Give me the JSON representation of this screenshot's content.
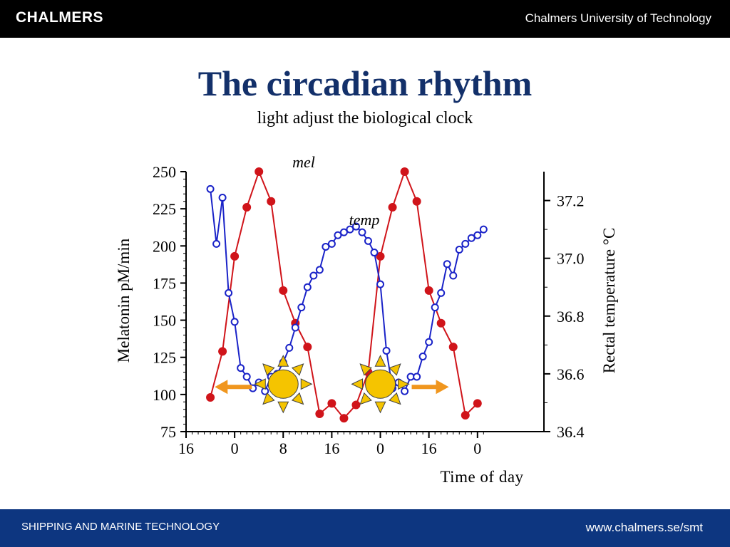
{
  "header": {
    "logo_text": "CHALMERS",
    "university": "Chalmers University of Technology"
  },
  "title": "The circadian rhythm",
  "subtitle": "light adjust the biological clock",
  "footer": {
    "department": "SHIPPING AND MARINE TECHNOLOGY",
    "url": "www.chalmers.se/smt"
  },
  "colors": {
    "header_bg": "#000000",
    "footer_bg": "#0d3680",
    "title": "#13306a",
    "mel": "#d0141a",
    "temp": "#1a23c8",
    "sun": "#f5c400",
    "arrow": "#f0961e"
  },
  "chart_data": {
    "type": "line",
    "xlabel": "Time of day",
    "ylabel_left": "Melatonin pM/min",
    "ylabel_right": "Rectal temperature °C",
    "x_range": [
      0,
      60
    ],
    "x_ticks": [
      {
        "pos": 0,
        "label": "16"
      },
      {
        "pos": 8,
        "label": "0"
      },
      {
        "pos": 16,
        "label": "8"
      },
      {
        "pos": 24,
        "label": "16"
      },
      {
        "pos": 32,
        "label": "0"
      },
      {
        "pos": 40,
        "label": "16"
      },
      {
        "pos": 48,
        "label": "0"
      }
    ],
    "ylim_left": [
      75,
      250
    ],
    "yticks_left": [
      75,
      100,
      125,
      150,
      175,
      200,
      225,
      250
    ],
    "ylim_right": [
      36.4,
      37.3
    ],
    "yticks_right": [
      "36.4",
      "36.6",
      "36.8",
      "37.0",
      "37.2"
    ],
    "series": [
      {
        "name": "mel",
        "axis": "left",
        "x": [
          4,
          6,
          8,
          10,
          12,
          14,
          16,
          18,
          20,
          22,
          24,
          26,
          28,
          30,
          32,
          34,
          36,
          38,
          40,
          42,
          44,
          46,
          48
        ],
        "values": [
          98,
          129,
          193,
          226,
          250,
          230,
          170,
          148,
          132,
          87,
          94,
          84,
          93,
          115,
          193,
          226,
          250,
          230,
          170,
          148,
          132,
          86,
          94
        ]
      },
      {
        "name": "temp",
        "axis": "right",
        "x": [
          4,
          5,
          6,
          7,
          8,
          9,
          10,
          11,
          12,
          13,
          14,
          15,
          16,
          17,
          18,
          19,
          20,
          21,
          22,
          23,
          24,
          25,
          26,
          27,
          28,
          29,
          30,
          31,
          32,
          33,
          34,
          35,
          36,
          37,
          38,
          39,
          40,
          41,
          42,
          43,
          44,
          45,
          46,
          47,
          48,
          49
        ],
        "values": [
          37.24,
          37.05,
          37.21,
          36.88,
          36.78,
          36.62,
          36.59,
          36.55,
          36.57,
          36.54,
          36.59,
          36.6,
          36.64,
          36.69,
          36.76,
          36.83,
          36.9,
          36.94,
          36.96,
          37.04,
          37.05,
          37.08,
          37.09,
          37.1,
          37.11,
          37.09,
          37.06,
          37.02,
          36.91,
          36.68,
          36.55,
          36.57,
          36.54,
          36.59,
          36.59,
          36.66,
          36.71,
          36.83,
          36.88,
          36.98,
          36.94,
          37.03,
          37.05,
          37.07,
          37.08,
          37.1
        ]
      }
    ],
    "series_labels": {
      "mel": "mel",
      "temp": "temp"
    },
    "annotations": [
      {
        "type": "sun-icon",
        "x": 16,
        "y": 107,
        "arrow": "left"
      },
      {
        "type": "sun-icon",
        "x": 32,
        "y": 107,
        "arrow": "right"
      }
    ]
  }
}
